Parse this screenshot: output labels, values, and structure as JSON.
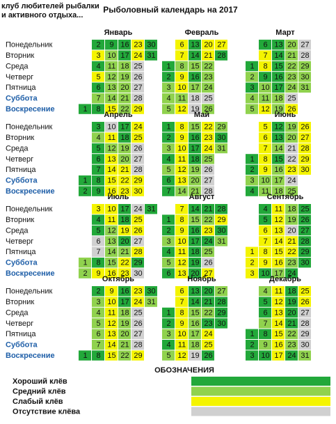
{
  "header": {
    "club_line1": "клуб любителей рыбалки",
    "club_line2": "и активного отдыха...",
    "title": "Рыболовный календарь на 2017"
  },
  "weekdays": [
    "Понедельник",
    "Вторник",
    "Среда",
    "Четверг",
    "Пятница",
    "Суббота",
    "Воскресение"
  ],
  "legend": {
    "title": "ОБОЗНАЧЕНИЯ",
    "items": [
      {
        "label": "Хороший клёв",
        "color": "#22a83a"
      },
      {
        "label": "Средний клёв",
        "color": "#90d24e"
      },
      {
        "label": "Слабый клёв",
        "color": "#f4f400"
      },
      {
        "label": "Отсутствие клёва",
        "color": "#d0d0d0"
      }
    ]
  },
  "months": [
    {
      "name": "Январь",
      "weeks": [
        [
          null,
          null,
          null,
          null,
          null,
          null,
          1
        ],
        [
          2,
          3,
          4,
          5,
          6,
          7,
          8
        ],
        [
          9,
          10,
          11,
          12,
          13,
          14,
          15
        ],
        [
          16,
          17,
          18,
          19,
          20,
          21,
          22
        ],
        [
          23,
          24,
          25,
          26,
          27,
          28,
          29
        ],
        [
          30,
          31,
          null,
          null,
          null,
          null,
          null
        ]
      ],
      "bite": [
        0,
        0,
        2,
        0,
        2,
        0,
        1,
        0,
        0,
        1,
        1,
        1,
        1,
        1,
        2,
        0,
        0,
        1,
        1,
        1,
        1,
        1,
        2,
        2,
        3,
        3,
        3,
        3,
        2,
        0,
        0
      ]
    },
    {
      "name": "Февраль",
      "weeks": [
        [
          null,
          null,
          1,
          2,
          3,
          4,
          5
        ],
        [
          6,
          7,
          8,
          9,
          10,
          11,
          12
        ],
        [
          13,
          14,
          15,
          16,
          17,
          18,
          19
        ],
        [
          20,
          21,
          22,
          23,
          24,
          25,
          26
        ],
        [
          27,
          28,
          null,
          null,
          null,
          null,
          null
        ]
      ],
      "bite": [
        0,
        0,
        1,
        1,
        1,
        2,
        2,
        1,
        2,
        2,
        1,
        2,
        0,
        0,
        1,
        0,
        1,
        3,
        3,
        2,
        2,
        1,
        1,
        1,
        3,
        1,
        2,
        0
      ]
    },
    {
      "name": "Март",
      "weeks": [
        [
          null,
          null,
          1,
          2,
          3,
          4,
          5
        ],
        [
          6,
          7,
          8,
          9,
          10,
          11,
          12
        ],
        [
          13,
          14,
          15,
          16,
          17,
          18,
          19
        ],
        [
          20,
          21,
          22,
          23,
          24,
          25,
          26
        ],
        [
          27,
          28,
          29,
          30,
          31,
          null,
          null
        ]
      ],
      "bite": [
        0,
        1,
        0,
        1,
        1,
        0,
        2,
        2,
        0,
        1,
        1,
        2,
        0,
        0,
        0,
        0,
        0,
        1,
        1,
        1,
        1,
        1,
        1,
        1,
        3,
        2,
        3,
        3,
        1,
        1,
        1
      ]
    },
    {
      "name": "Апрель",
      "weeks": [
        [
          null,
          null,
          null,
          null,
          null,
          1,
          2
        ],
        [
          3,
          4,
          5,
          6,
          7,
          8,
          9
        ],
        [
          10,
          11,
          12,
          13,
          14,
          15,
          16
        ],
        [
          17,
          18,
          19,
          20,
          21,
          22,
          23
        ],
        [
          24,
          25,
          26,
          27,
          28,
          29,
          30
        ]
      ],
      "bite": [
        0,
        0,
        0,
        1,
        0,
        0,
        0,
        0,
        0,
        3,
        2,
        1,
        2,
        2,
        2,
        2,
        0,
        0,
        1,
        1,
        2,
        2,
        2,
        2,
        2,
        3,
        3,
        3,
        2,
        2
      ]
    },
    {
      "name": "Май",
      "weeks": [
        [
          1,
          2,
          3,
          4,
          5,
          6,
          7
        ],
        [
          8,
          9,
          10,
          11,
          12,
          13,
          14
        ],
        [
          15,
          16,
          17,
          18,
          19,
          20,
          21
        ],
        [
          22,
          23,
          24,
          25,
          26,
          27,
          28
        ],
        [
          29,
          30,
          31,
          null,
          null,
          null,
          null
        ]
      ],
      "bite": [
        0,
        0,
        1,
        0,
        1,
        0,
        0,
        2,
        2,
        2,
        2,
        2,
        2,
        1,
        1,
        0,
        0,
        0,
        1,
        1,
        1,
        2,
        2,
        2,
        1,
        3,
        3,
        3,
        1,
        0,
        1
      ]
    },
    {
      "name": "Июнь",
      "weeks": [
        [
          null,
          null,
          null,
          1,
          2,
          3,
          4
        ],
        [
          5,
          6,
          7,
          8,
          9,
          10,
          11
        ],
        [
          12,
          13,
          14,
          15,
          16,
          17,
          18
        ],
        [
          19,
          20,
          21,
          22,
          23,
          24,
          25
        ],
        [
          26,
          27,
          28,
          29,
          30,
          null,
          null
        ]
      ],
      "bite": [
        0,
        0,
        1,
        0,
        2,
        2,
        2,
        2,
        2,
        1,
        1,
        0,
        0,
        1,
        0,
        1,
        1,
        1,
        1,
        1,
        3,
        3,
        2,
        3,
        1,
        2,
        2,
        2,
        2,
        2
      ]
    },
    {
      "name": "Июль",
      "weeks": [
        [
          null,
          null,
          null,
          null,
          null,
          1,
          2
        ],
        [
          3,
          4,
          5,
          6,
          7,
          8,
          9
        ],
        [
          10,
          11,
          12,
          13,
          14,
          15,
          16
        ],
        [
          17,
          18,
          19,
          20,
          21,
          22,
          23
        ],
        [
          24,
          25,
          26,
          27,
          28,
          29,
          30
        ],
        [
          31,
          null,
          null,
          null,
          null,
          null,
          null
        ]
      ],
      "bite": [
        1,
        1,
        2,
        0,
        0,
        3,
        3,
        0,
        2,
        2,
        2,
        1,
        1,
        1,
        1,
        2,
        0,
        0,
        2,
        0,
        1,
        2,
        2,
        3,
        2,
        2,
        3,
        2,
        0,
        3,
        0
      ]
    },
    {
      "name": "Август",
      "weeks": [
        [
          null,
          1,
          2,
          3,
          4,
          5,
          6
        ],
        [
          7,
          8,
          9,
          10,
          11,
          12,
          13
        ],
        [
          14,
          15,
          16,
          17,
          18,
          19,
          20
        ],
        [
          21,
          22,
          23,
          24,
          25,
          26,
          27
        ],
        [
          28,
          29,
          30,
          31,
          null,
          null,
          null
        ]
      ],
      "bite": [
        0,
        0,
        1,
        0,
        1,
        0,
        2,
        2,
        2,
        2,
        2,
        2,
        2,
        0,
        1,
        0,
        0,
        0,
        0,
        0,
        0,
        1,
        2,
        0,
        1,
        3,
        2,
        0,
        2,
        0,
        1
      ]
    },
    {
      "name": "Сентябрь",
      "weeks": [
        [
          null,
          null,
          null,
          null,
          1,
          2,
          3
        ],
        [
          4,
          5,
          6,
          7,
          8,
          9,
          10
        ],
        [
          11,
          12,
          13,
          14,
          15,
          16,
          17
        ],
        [
          18,
          19,
          20,
          21,
          22,
          23,
          24
        ],
        [
          25,
          26,
          27,
          28,
          29,
          30,
          null
        ]
      ],
      "bite": [
        2,
        2,
        2,
        0,
        0,
        2,
        2,
        2,
        2,
        0,
        2,
        2,
        2,
        2,
        2,
        2,
        1,
        1,
        1,
        3,
        2,
        2,
        1,
        0,
        0,
        0,
        0,
        0,
        0,
        0
      ]
    },
    {
      "name": "Октябрь",
      "weeks": [
        [
          null,
          null,
          null,
          null,
          null,
          null,
          1
        ],
        [
          2,
          3,
          4,
          5,
          6,
          7,
          8
        ],
        [
          9,
          10,
          11,
          12,
          13,
          14,
          15
        ],
        [
          16,
          17,
          18,
          19,
          20,
          21,
          22
        ],
        [
          23,
          24,
          25,
          26,
          27,
          28,
          29
        ],
        [
          30,
          31,
          null,
          null,
          null,
          null,
          null
        ]
      ],
      "bite": [
        0,
        0,
        1,
        1,
        1,
        1,
        1,
        0,
        2,
        2,
        2,
        2,
        2,
        2,
        2,
        0,
        0,
        1,
        1,
        1,
        1,
        1,
        2,
        2,
        3,
        3,
        3,
        3,
        2,
        0,
        1
      ]
    },
    {
      "name": "Ноябрь",
      "weeks": [
        [
          null,
          null,
          1,
          2,
          3,
          4,
          5
        ],
        [
          6,
          7,
          8,
          9,
          10,
          11,
          12
        ],
        [
          13,
          14,
          15,
          16,
          17,
          18,
          19
        ],
        [
          20,
          21,
          22,
          23,
          24,
          25,
          26
        ],
        [
          27,
          28,
          29,
          30,
          null,
          null,
          null
        ]
      ],
      "bite": [
        0,
        0,
        1,
        0,
        1,
        2,
        2,
        2,
        2,
        2,
        2,
        2,
        0,
        0,
        1,
        1,
        1,
        1,
        3,
        0,
        0,
        1,
        0,
        2,
        2,
        0,
        1,
        0,
        0,
        0
      ]
    },
    {
      "name": "Декабрь",
      "weeks": [
        [
          null,
          null,
          null,
          null,
          1,
          2,
          3
        ],
        [
          4,
          5,
          6,
          7,
          8,
          9,
          10
        ],
        [
          11,
          12,
          13,
          14,
          15,
          16,
          17
        ],
        [
          18,
          19,
          20,
          21,
          22,
          23,
          24
        ],
        [
          25,
          26,
          27,
          28,
          29,
          30,
          31
        ]
      ],
      "bite": [
        0,
        0,
        0,
        1,
        0,
        0,
        1,
        0,
        1,
        0,
        2,
        2,
        2,
        2,
        2,
        2,
        2,
        0,
        0,
        0,
        0,
        1,
        1,
        0,
        2,
        2,
        3,
        3,
        3,
        3,
        1
      ]
    }
  ]
}
